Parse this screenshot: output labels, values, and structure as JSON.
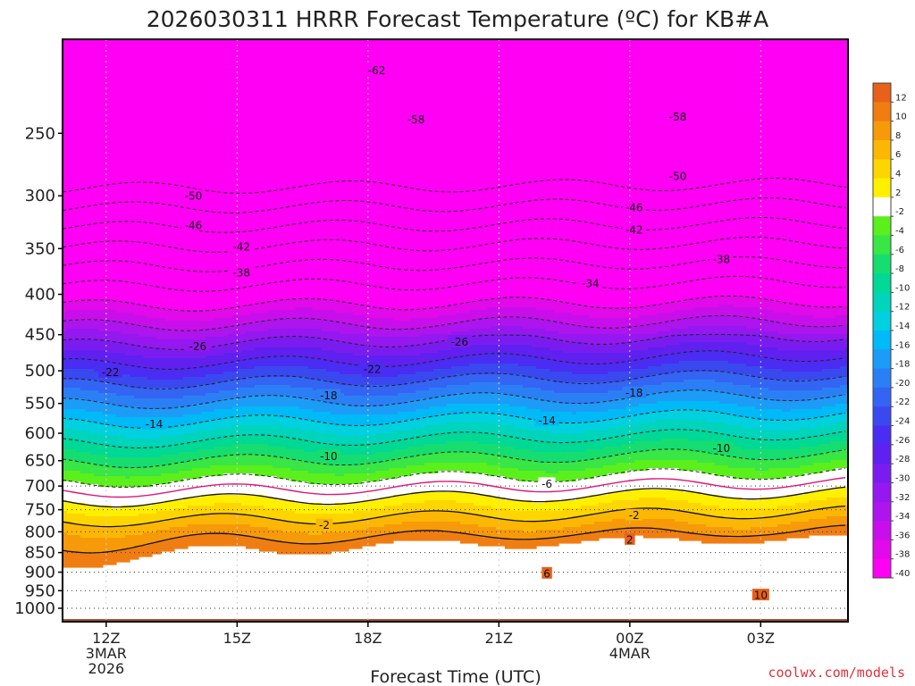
{
  "title": "2026030311 HRRR Forecast Temperature (ºC) for KB#A",
  "credit": "coolwx.com/models",
  "chart_data": {
    "type": "contour",
    "title": "2026030311 HRRR Forecast Temperature (ºC) for KB#A",
    "xlabel": "Forecast Time (UTC)",
    "ylabel": "",
    "x_ticks": [
      {
        "lines": [
          "12Z",
          "3MAR",
          "2026"
        ],
        "hour": 12
      },
      {
        "lines": [
          "15Z"
        ],
        "hour": 15
      },
      {
        "lines": [
          "18Z"
        ],
        "hour": 18
      },
      {
        "lines": [
          "21Z"
        ],
        "hour": 21
      },
      {
        "lines": [
          "00Z",
          "4MAR"
        ],
        "hour": 24
      },
      {
        "lines": [
          "03Z"
        ],
        "hour": 27
      }
    ],
    "x_range_hours": [
      11,
      29
    ],
    "y_ticks": [
      "250",
      "300",
      "350",
      "400",
      "450",
      "500",
      "550",
      "600",
      "650",
      "700",
      "750",
      "800",
      "850",
      "900",
      "950",
      "1000"
    ],
    "y_scale": "log-pressure",
    "y_range_hpa": [
      1040,
      190
    ],
    "colorbar": {
      "labels": [
        "12",
        "10",
        "8",
        "6",
        "4",
        "2",
        "-2",
        "-4",
        "-6",
        "-8",
        "-10",
        "-12",
        "-14",
        "-16",
        "-18",
        "-20",
        "-22",
        "-24",
        "-26",
        "-28",
        "-30",
        "-32",
        "-34",
        "-36",
        "-38",
        "-40"
      ],
      "colors": [
        "#e8601a",
        "#f07d12",
        "#f69a0a",
        "#fbb703",
        "#ffd500",
        "#fff000",
        "#ffffff",
        "#5bef1c",
        "#38e645",
        "#16dd6f",
        "#00d896",
        "#00d4ba",
        "#00d0df",
        "#00b9f7",
        "#1c9cf7",
        "#2b7ff5",
        "#3464f3",
        "#3a48f0",
        "#4a2cf2",
        "#6020f0",
        "#7a1cf0",
        "#9418ef",
        "#ad14ee",
        "#c80feb",
        "#e209ea",
        "#ff00f5"
      ]
    },
    "contour_labels": [
      {
        "text": "-62",
        "hour": 18.2,
        "p": 208
      },
      {
        "text": "-58",
        "hour": 19.1,
        "p": 240
      },
      {
        "text": "-58",
        "hour": 25.1,
        "p": 238
      },
      {
        "text": "-50",
        "hour": 14.0,
        "p": 300
      },
      {
        "text": "-50",
        "hour": 25.1,
        "p": 283
      },
      {
        "text": "-46",
        "hour": 14.0,
        "p": 327
      },
      {
        "text": "-46",
        "hour": 24.1,
        "p": 310
      },
      {
        "text": "-42",
        "hour": 15.1,
        "p": 348
      },
      {
        "text": "-42",
        "hour": 24.1,
        "p": 331
      },
      {
        "text": "-38",
        "hour": 15.1,
        "p": 375
      },
      {
        "text": "-38",
        "hour": 26.1,
        "p": 361
      },
      {
        "text": "-34",
        "hour": 23.1,
        "p": 387
      },
      {
        "text": "-26",
        "hour": 14.1,
        "p": 465
      },
      {
        "text": "-26",
        "hour": 20.1,
        "p": 459
      },
      {
        "text": "-22",
        "hour": 12.1,
        "p": 502
      },
      {
        "text": "-22",
        "hour": 18.1,
        "p": 497
      },
      {
        "text": "-18",
        "hour": 17.1,
        "p": 537
      },
      {
        "text": "-18",
        "hour": 24.1,
        "p": 533
      },
      {
        "text": "-14",
        "hour": 13.1,
        "p": 584
      },
      {
        "text": "-14",
        "hour": 22.1,
        "p": 578
      },
      {
        "text": "-10",
        "hour": 17.1,
        "p": 641
      },
      {
        "text": "-10",
        "hour": 26.1,
        "p": 626
      },
      {
        "text": "-6",
        "hour": 22.1,
        "p": 695
      },
      {
        "text": "-2",
        "hour": 17.0,
        "p": 784
      },
      {
        "text": "-2",
        "hour": 24.1,
        "p": 762
      },
      {
        "text": "2",
        "hour": 24.0,
        "p": 818
      },
      {
        "text": "6",
        "hour": 22.1,
        "p": 903
      },
      {
        "text": "10",
        "hour": 27.0,
        "p": 962
      }
    ],
    "isotherms_dashed_c": [
      -62,
      -58,
      -54,
      -50,
      -46,
      -42,
      -38,
      -34,
      -30,
      -26,
      -22,
      -18,
      -14,
      -10,
      -6,
      -2
    ],
    "isotherms_solid_c": [
      2,
      6,
      10
    ],
    "freezing_line_color": "#e0167a"
  }
}
